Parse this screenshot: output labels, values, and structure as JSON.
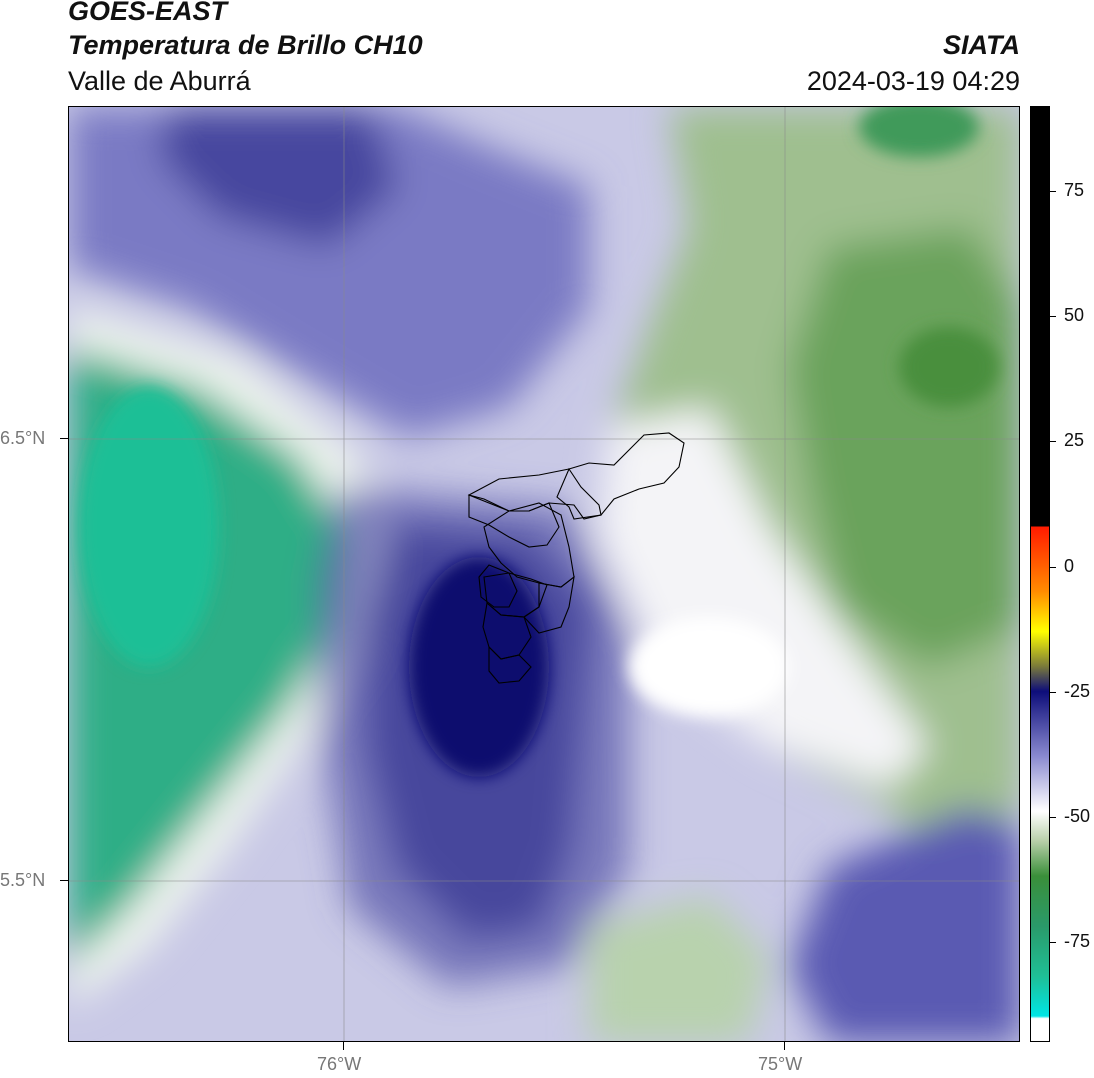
{
  "header": {
    "satellite": "GOES-EAST",
    "product": "Temperatura de Brillo CH10",
    "region": "Valle de Aburrá",
    "organization": "SIATA",
    "timestamp": "2024-03-19 04:29"
  },
  "map": {
    "lat_labels": [
      "6.5°N",
      "5.5°N"
    ],
    "lon_labels": [
      "76°W",
      "75°W"
    ]
  },
  "colorbar": {
    "ticks": [
      "75",
      "50",
      "25",
      "0",
      "-25",
      "-50",
      "-75"
    ],
    "range": [
      -95,
      92
    ],
    "colors": {
      "black": "#000000",
      "red": "#ff1a00",
      "orange": "#ff8c00",
      "yellow": "#ffff00",
      "navy": "#0d0d7a",
      "white": "#ffffff",
      "green": "#3a8f3a",
      "teal": "#1fbf96",
      "cyan": "#00e5e5"
    }
  }
}
